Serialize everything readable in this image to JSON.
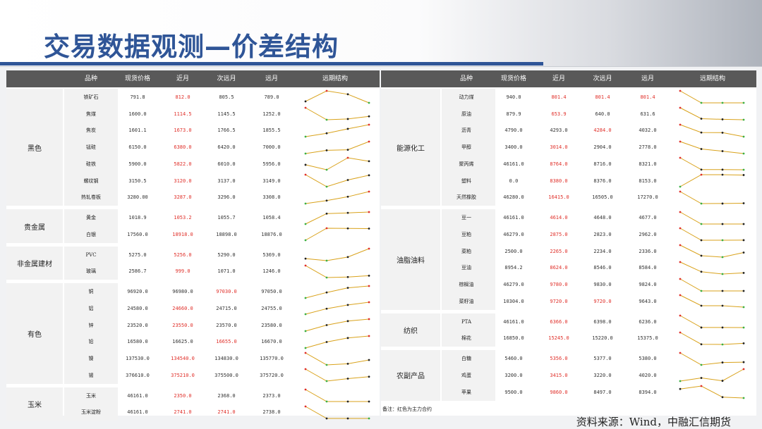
{
  "title": "交易数据观测—价差结构",
  "headers": [
    "品种",
    "现货价格",
    "近月",
    "次远月",
    "远月",
    "远期结构"
  ],
  "colors": {
    "title": "#2f5597",
    "red": "#e0302a",
    "line": "#d9a21b",
    "up": "#3cb043",
    "down": "#e0302a",
    "header_bg": "#595959"
  },
  "left_groups": [
    {
      "label": "黑色",
      "rows": [
        {
          "name": "铁矿石",
          "spot": "791.8",
          "near": "812.0",
          "next": "805.5",
          "far": "789.0",
          "main": "near"
        },
        {
          "name": "焦煤",
          "spot": "1600.0",
          "near": "1114.5",
          "next": "1145.5",
          "far": "1252.0",
          "main": "near"
        },
        {
          "name": "焦炭",
          "spot": "1601.1",
          "near": "1673.0",
          "next": "1766.5",
          "far": "1855.5",
          "main": "near"
        },
        {
          "name": "锰硅",
          "spot": "6150.0",
          "near": "6380.0",
          "next": "6420.0",
          "far": "7000.0",
          "main": "near"
        },
        {
          "name": "硅铁",
          "spot": "5900.0",
          "near": "5822.0",
          "next": "6010.0",
          "far": "5956.0",
          "main": "near"
        },
        {
          "name": "螺纹钢",
          "spot": "3150.5",
          "near": "3120.0",
          "next": "3137.0",
          "far": "3149.0",
          "main": "near"
        },
        {
          "name": "热轧卷板",
          "spot": "3280.00",
          "near": "3287.0",
          "next": "3296.0",
          "far": "3308.0",
          "main": "near"
        }
      ]
    },
    {
      "label": "贵金属",
      "rows": [
        {
          "name": "黄金",
          "spot": "1018.9",
          "near": "1053.2",
          "next": "1055.7",
          "far": "1058.4",
          "main": "near"
        },
        {
          "name": "白银",
          "spot": "17560.0",
          "near": "18918.0",
          "next": "18898.0",
          "far": "18876.0",
          "main": "near"
        }
      ]
    },
    {
      "label": "非金属建材",
      "rows": [
        {
          "name": "PVC",
          "spot": "5275.0",
          "near": "5256.0",
          "next": "5290.0",
          "far": "5369.0",
          "main": "near"
        },
        {
          "name": "玻璃",
          "spot": "2586.7",
          "near": "999.0",
          "next": "1071.0",
          "far": "1246.0",
          "main": "near"
        }
      ]
    },
    {
      "label": "有色",
      "rows": [
        {
          "name": "铜",
          "spot": "96920.0",
          "near": "96980.0",
          "next": "97030.0",
          "far": "97050.0",
          "main": "next"
        },
        {
          "name": "铝",
          "spot": "24580.0",
          "near": "24660.0",
          "next": "24715.0",
          "far": "24755.0",
          "main": "near"
        },
        {
          "name": "锌",
          "spot": "23520.0",
          "near": "23550.0",
          "next": "23570.0",
          "far": "23580.0",
          "main": "near"
        },
        {
          "name": "铅",
          "spot": "16580.0",
          "near": "16625.0",
          "next": "16655.0",
          "far": "16670.0",
          "main": "next"
        },
        {
          "name": "镍",
          "spot": "137530.0",
          "near": "134540.0",
          "next": "134830.0",
          "far": "135770.0",
          "main": "near"
        },
        {
          "name": "锡",
          "spot": "376610.0",
          "near": "375210.0",
          "next": "375500.0",
          "far": "375720.0",
          "main": "near"
        }
      ]
    },
    {
      "label": "玉米",
      "rows": [
        {
          "name": "玉米",
          "spot": "46161.0",
          "near": "2350.0",
          "next": "2368.0",
          "far": "2373.0",
          "main": "near"
        },
        {
          "name": "玉米淀粉",
          "spot": "46161.0",
          "near": "2741.0",
          "next": "2741.0",
          "far": "2738.0",
          "main": "both"
        }
      ]
    }
  ],
  "right_groups": [
    {
      "label": "能源化工",
      "rows": [
        {
          "name": "动力煤",
          "spot": "940.0",
          "near": "801.4",
          "next": "801.4",
          "far": "801.4",
          "main": "all"
        },
        {
          "name": "原油",
          "spot": "879.9",
          "near": "653.9",
          "next": "640.0",
          "far": "631.6",
          "main": "near"
        },
        {
          "name": "沥青",
          "spot": "4790.0",
          "near": "4293.0",
          "next": "4284.0",
          "far": "4032.0",
          "main": "next"
        },
        {
          "name": "甲醇",
          "spot": "3400.0",
          "near": "3014.0",
          "next": "2904.0",
          "far": "2778.0",
          "main": "near"
        },
        {
          "name": "聚丙烯",
          "spot": "46161.0",
          "near": "8764.0",
          "next": "8716.0",
          "far": "8321.0",
          "main": "near"
        },
        {
          "name": "塑料",
          "spot": "0.0",
          "near": "8380.0",
          "next": "8376.0",
          "far": "8153.0",
          "main": "near"
        },
        {
          "name": "天然橡胶",
          "spot": "46280.0",
          "near": "16415.0",
          "next": "16505.0",
          "far": "17270.0",
          "main": "near"
        }
      ]
    },
    {
      "label": "油脂油料",
      "rows": [
        {
          "name": "豆一",
          "spot": "46161.0",
          "near": "4614.0",
          "next": "4648.0",
          "far": "4677.0",
          "main": "near"
        },
        {
          "name": "豆粕",
          "spot": "46279.0",
          "near": "2875.0",
          "next": "2823.0",
          "far": "2962.0",
          "main": "near"
        },
        {
          "name": "菜粕",
          "spot": "2500.0",
          "near": "2265.0",
          "next": "2234.0",
          "far": "2336.0",
          "main": "near"
        },
        {
          "name": "豆油",
          "spot": "8954.2",
          "near": "8624.0",
          "next": "8546.0",
          "far": "8584.0",
          "main": "near"
        },
        {
          "name": "棕榈油",
          "spot": "46279.0",
          "near": "9780.0",
          "next": "9830.0",
          "far": "9824.0",
          "main": "near"
        },
        {
          "name": "菜籽油",
          "spot": "10304.0",
          "near": "9720.0",
          "next": "9720.0",
          "far": "9643.0",
          "main": "both"
        }
      ]
    },
    {
      "label": "纺织",
      "rows": [
        {
          "name": "PTA",
          "spot": "46161.0",
          "near": "6366.0",
          "next": "6398.0",
          "far": "6236.0",
          "main": "near"
        },
        {
          "name": "棉花",
          "spot": "16850.0",
          "near": "15245.0",
          "next": "15220.0",
          "far": "15375.0",
          "main": "near"
        }
      ]
    },
    {
      "label": "农副产品",
      "rows": [
        {
          "name": "白糖",
          "spot": "5460.0",
          "near": "5356.0",
          "next": "5377.0",
          "far": "5380.0",
          "main": "near"
        },
        {
          "name": "鸡蛋",
          "spot": "3200.0",
          "near": "3415.0",
          "next": "3220.0",
          "far": "4020.0",
          "main": "near"
        },
        {
          "name": "苹果",
          "spot": "9500.0",
          "near": "9860.0",
          "next": "8497.0",
          "far": "8394.0",
          "main": "near"
        }
      ]
    }
  ],
  "footnote": "备注：红色为主力合约",
  "source": "资料来源：Wind，中融汇信期货"
}
